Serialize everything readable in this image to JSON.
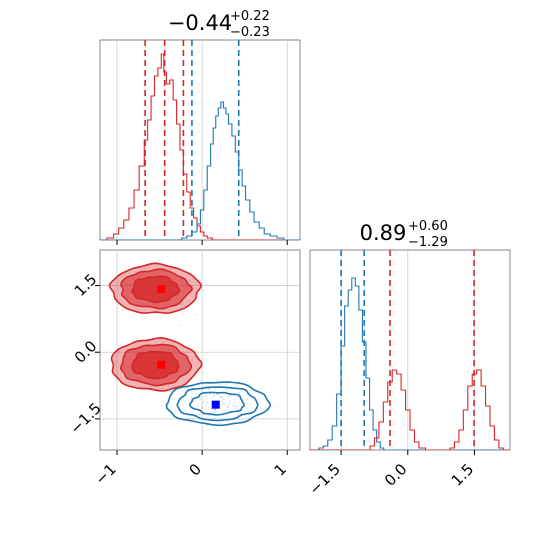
{
  "chart_data": [
    {
      "type": "histogram",
      "panel": "top-left marginal",
      "title_value": "−0.44",
      "title_plus": "+0.22",
      "title_minus": "−0.23",
      "xlim": [
        -1.2,
        1.15
      ],
      "series": [
        {
          "color": "#d62728",
          "bins": [
            [
              -1.2,
              0.0
            ],
            [
              -1.12,
              0.01
            ],
            [
              -1.04,
              0.03
            ],
            [
              -0.98,
              0.06
            ],
            [
              -0.92,
              0.1
            ],
            [
              -0.86,
              0.16
            ],
            [
              -0.8,
              0.25
            ],
            [
              -0.74,
              0.37
            ],
            [
              -0.68,
              0.5
            ],
            [
              -0.64,
              0.6
            ],
            [
              -0.6,
              0.72
            ],
            [
              -0.56,
              0.82
            ],
            [
              -0.52,
              0.86
            ],
            [
              -0.48,
              0.93
            ],
            [
              -0.45,
              0.84
            ],
            [
              -0.42,
              0.78
            ],
            [
              -0.38,
              0.8
            ],
            [
              -0.34,
              0.7
            ],
            [
              -0.3,
              0.58
            ],
            [
              -0.26,
              0.45
            ],
            [
              -0.22,
              0.33
            ],
            [
              -0.18,
              0.24
            ],
            [
              -0.14,
              0.16
            ],
            [
              -0.1,
              0.11
            ],
            [
              -0.06,
              0.07
            ],
            [
              -0.02,
              0.04
            ],
            [
              0.02,
              0.02
            ],
            [
              0.06,
              0.01
            ],
            [
              0.12,
              0.0
            ],
            [
              1.15,
              0.0
            ]
          ],
          "quantiles": [
            -0.67,
            -0.44,
            -0.22
          ]
        },
        {
          "color": "#1f77b4",
          "bins": [
            [
              -1.2,
              0.0
            ],
            [
              -0.3,
              0.0
            ],
            [
              -0.24,
              0.01
            ],
            [
              -0.18,
              0.02
            ],
            [
              -0.12,
              0.04
            ],
            [
              -0.06,
              0.08
            ],
            [
              -0.02,
              0.15
            ],
            [
              0.02,
              0.25
            ],
            [
              0.06,
              0.37
            ],
            [
              0.1,
              0.48
            ],
            [
              0.13,
              0.56
            ],
            [
              0.16,
              0.62
            ],
            [
              0.19,
              0.66
            ],
            [
              0.22,
              0.69
            ],
            [
              0.25,
              0.66
            ],
            [
              0.28,
              0.63
            ],
            [
              0.31,
              0.58
            ],
            [
              0.35,
              0.52
            ],
            [
              0.39,
              0.44
            ],
            [
              0.43,
              0.35
            ],
            [
              0.47,
              0.27
            ],
            [
              0.51,
              0.2
            ],
            [
              0.56,
              0.14
            ],
            [
              0.61,
              0.09
            ],
            [
              0.67,
              0.06
            ],
            [
              0.73,
              0.03
            ],
            [
              0.8,
              0.02
            ],
            [
              0.88,
              0.01
            ],
            [
              0.96,
              0.0
            ],
            [
              1.15,
              0.0
            ]
          ],
          "quantiles": [
            -0.12,
            0.43
          ]
        }
      ]
    },
    {
      "type": "scatter",
      "panel": "bottom-left 2D",
      "xlim": [
        -1.2,
        1.15
      ],
      "ylim": [
        -2.2,
        2.3
      ],
      "xticks": [
        "−1",
        "0",
        "1"
      ],
      "xtick_values": [
        -1,
        0,
        1
      ],
      "yticks": [
        "1.5",
        "0.0",
        "−1.5"
      ],
      "ytick_values": [
        1.5,
        0.0,
        -1.5
      ],
      "markers": [
        {
          "color": "#ff0000",
          "x": -0.48,
          "y": 1.42,
          "marker": "square"
        },
        {
          "color": "#ff0000",
          "x": -0.48,
          "y": -0.28,
          "marker": "square"
        },
        {
          "color": "#0000ff",
          "x": 0.16,
          "y": -1.18,
          "marker": "square"
        }
      ],
      "contours": [
        {
          "color": "#d62728",
          "fill": true,
          "cx": -0.55,
          "cy": 1.42,
          "rx": 0.52,
          "ry": 0.55
        },
        {
          "color": "#d62728",
          "fill": true,
          "cx": -0.55,
          "cy": -0.28,
          "rx": 0.52,
          "ry": 0.58
        },
        {
          "color": "#1f77b4",
          "fill": false,
          "cx": 0.18,
          "cy": -1.15,
          "rx": 0.6,
          "ry": 0.48
        }
      ],
      "grid": true
    },
    {
      "type": "histogram",
      "panel": "bottom-right marginal",
      "title_value": "0.89",
      "title_plus": "+0.60",
      "title_minus": "−1.29",
      "xlim": [
        -2.2,
        2.3
      ],
      "xticks": [
        "−1.5",
        "0.0",
        "1.5"
      ],
      "xtick_values": [
        -1.5,
        0.0,
        1.5
      ],
      "series": [
        {
          "color": "#1f77b4",
          "bins": [
            [
              -2.2,
              0.0
            ],
            [
              -2.0,
              0.01
            ],
            [
              -1.9,
              0.02
            ],
            [
              -1.8,
              0.05
            ],
            [
              -1.7,
              0.12
            ],
            [
              -1.6,
              0.28
            ],
            [
              -1.5,
              0.52
            ],
            [
              -1.42,
              0.72
            ],
            [
              -1.34,
              0.8
            ],
            [
              -1.26,
              0.86
            ],
            [
              -1.18,
              0.82
            ],
            [
              -1.1,
              0.7
            ],
            [
              -1.02,
              0.54
            ],
            [
              -0.94,
              0.36
            ],
            [
              -0.86,
              0.2
            ],
            [
              -0.78,
              0.1
            ],
            [
              -0.7,
              0.04
            ],
            [
              -0.62,
              0.01
            ],
            [
              -0.54,
              0.0
            ],
            [
              2.3,
              0.0
            ]
          ],
          "quantiles": [
            -1.5,
            -0.98
          ]
        },
        {
          "color": "#d62728",
          "bins": [
            [
              -2.2,
              0.0
            ],
            [
              -0.95,
              0.0
            ],
            [
              -0.85,
              0.02
            ],
            [
              -0.75,
              0.06
            ],
            [
              -0.65,
              0.14
            ],
            [
              -0.55,
              0.24
            ],
            [
              -0.45,
              0.34
            ],
            [
              -0.35,
              0.4
            ],
            [
              -0.25,
              0.38
            ],
            [
              -0.15,
              0.3
            ],
            [
              -0.05,
              0.2
            ],
            [
              0.05,
              0.1
            ],
            [
              0.15,
              0.04
            ],
            [
              0.25,
              0.01
            ],
            [
              0.4,
              0.0
            ],
            [
              0.8,
              0.0
            ],
            [
              0.95,
              0.01
            ],
            [
              1.05,
              0.04
            ],
            [
              1.15,
              0.1
            ],
            [
              1.25,
              0.2
            ],
            [
              1.35,
              0.32
            ],
            [
              1.45,
              0.38
            ],
            [
              1.55,
              0.4
            ],
            [
              1.65,
              0.32
            ],
            [
              1.75,
              0.22
            ],
            [
              1.85,
              0.12
            ],
            [
              1.95,
              0.05
            ],
            [
              2.05,
              0.01
            ],
            [
              2.15,
              0.0
            ],
            [
              2.3,
              0.0
            ]
          ],
          "quantiles": [
            -0.4,
            1.49
          ]
        }
      ]
    }
  ]
}
